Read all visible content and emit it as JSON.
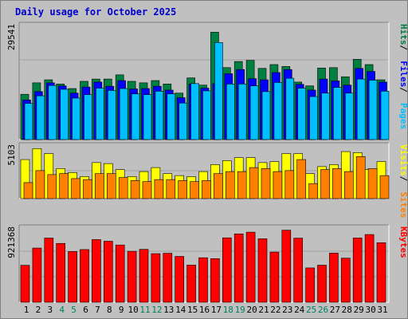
{
  "chart_data": {
    "type": "bar",
    "title": "Daily usage for October 2025",
    "categories": [
      "1",
      "2",
      "3",
      "4",
      "5",
      "6",
      "7",
      "8",
      "9",
      "10",
      "11",
      "12",
      "13",
      "14",
      "15",
      "16",
      "17",
      "18",
      "19",
      "20",
      "21",
      "22",
      "23",
      "24",
      "25",
      "26",
      "27",
      "28",
      "29",
      "30",
      "31"
    ],
    "weekend_days": [
      "4",
      "5",
      "11",
      "12",
      "18",
      "19",
      "25",
      "26"
    ],
    "weekend_color": "#00805c",
    "weekday_color": "#000000",
    "panels": [
      {
        "name": "visits-files-pages",
        "max_label": "29541",
        "max": 29541,
        "series": [
          {
            "name": "Hits",
            "color": "#008040",
            "values": [
              11900,
              14900,
              15700,
              14600,
              13400,
              15300,
              15900,
              15900,
              17000,
              15300,
              14900,
              15500,
              14600,
              12200,
              16200,
              14300,
              28200,
              18900,
              20500,
              20800,
              18700,
              19700,
              19200,
              15100,
              14100,
              18800,
              18900,
              16500,
              21100,
              19700,
              15700
            ]
          },
          {
            "name": "Files",
            "color": "#0000ff",
            "values": [
              10400,
              12600,
              14900,
              14100,
              12200,
              13800,
              15100,
              14000,
              15500,
              13300,
              13400,
              14000,
              13000,
              11000,
              14600,
              13500,
              14700,
              17300,
              18400,
              16000,
              15700,
              17600,
              18400,
              14500,
              13000,
              15900,
              15400,
              14300,
              18700,
              17900,
              15100
            ]
          },
          {
            "name": "Pages",
            "color": "#00bfff",
            "values": [
              9500,
              11500,
              14200,
              13200,
              10900,
              11800,
              13500,
              12900,
              13400,
              12000,
              11800,
              12700,
              12000,
              9600,
              14700,
              12800,
              25500,
              14600,
              14600,
              14100,
              12600,
              15000,
              16100,
              13500,
              11300,
              12200,
              13700,
              12200,
              15900,
              15600,
              12700
            ]
          }
        ]
      },
      {
        "name": "visits-sites",
        "max_label": "5103",
        "max": 5103,
        "series": [
          {
            "name": "Visits",
            "color": "#ffff00",
            "values": [
              3900,
              5000,
              4500,
              3000,
              2600,
              2200,
              3600,
              3500,
              2900,
              2200,
              2700,
              3100,
              2500,
              2300,
              2200,
              2700,
              3400,
              3800,
              4100,
              4100,
              3600,
              3700,
              4500,
              4500,
              2500,
              3200,
              3400,
              4700,
              4600,
              2900,
              3700
            ]
          },
          {
            "name": "Sites",
            "color": "#ff8000",
            "values": [
              1600,
              2800,
              2400,
              2500,
              2000,
              1900,
              2500,
              2500,
              2100,
              1800,
              1700,
              1900,
              1900,
              1800,
              1700,
              1800,
              2500,
              2700,
              2700,
              3100,
              3000,
              2700,
              2800,
              3900,
              1500,
              2900,
              3000,
              2700,
              4200,
              3000,
              2300
            ]
          }
        ]
      },
      {
        "name": "kbytes",
        "max_label": "921368",
        "max": 921368,
        "series": [
          {
            "name": "KBytes",
            "color": "#ff0000",
            "values": [
              469000,
              688000,
              815000,
              747000,
              644000,
              669000,
              796000,
              775000,
              727000,
              647000,
              672000,
              617000,
              622000,
              582000,
              472000,
              565000,
              554000,
              818000,
              868000,
              890000,
              806000,
              637000,
              915000,
              814000,
              436000,
              471000,
              624000,
              560000,
              816000,
              860000,
              756000
            ]
          }
        ]
      }
    ]
  }
}
